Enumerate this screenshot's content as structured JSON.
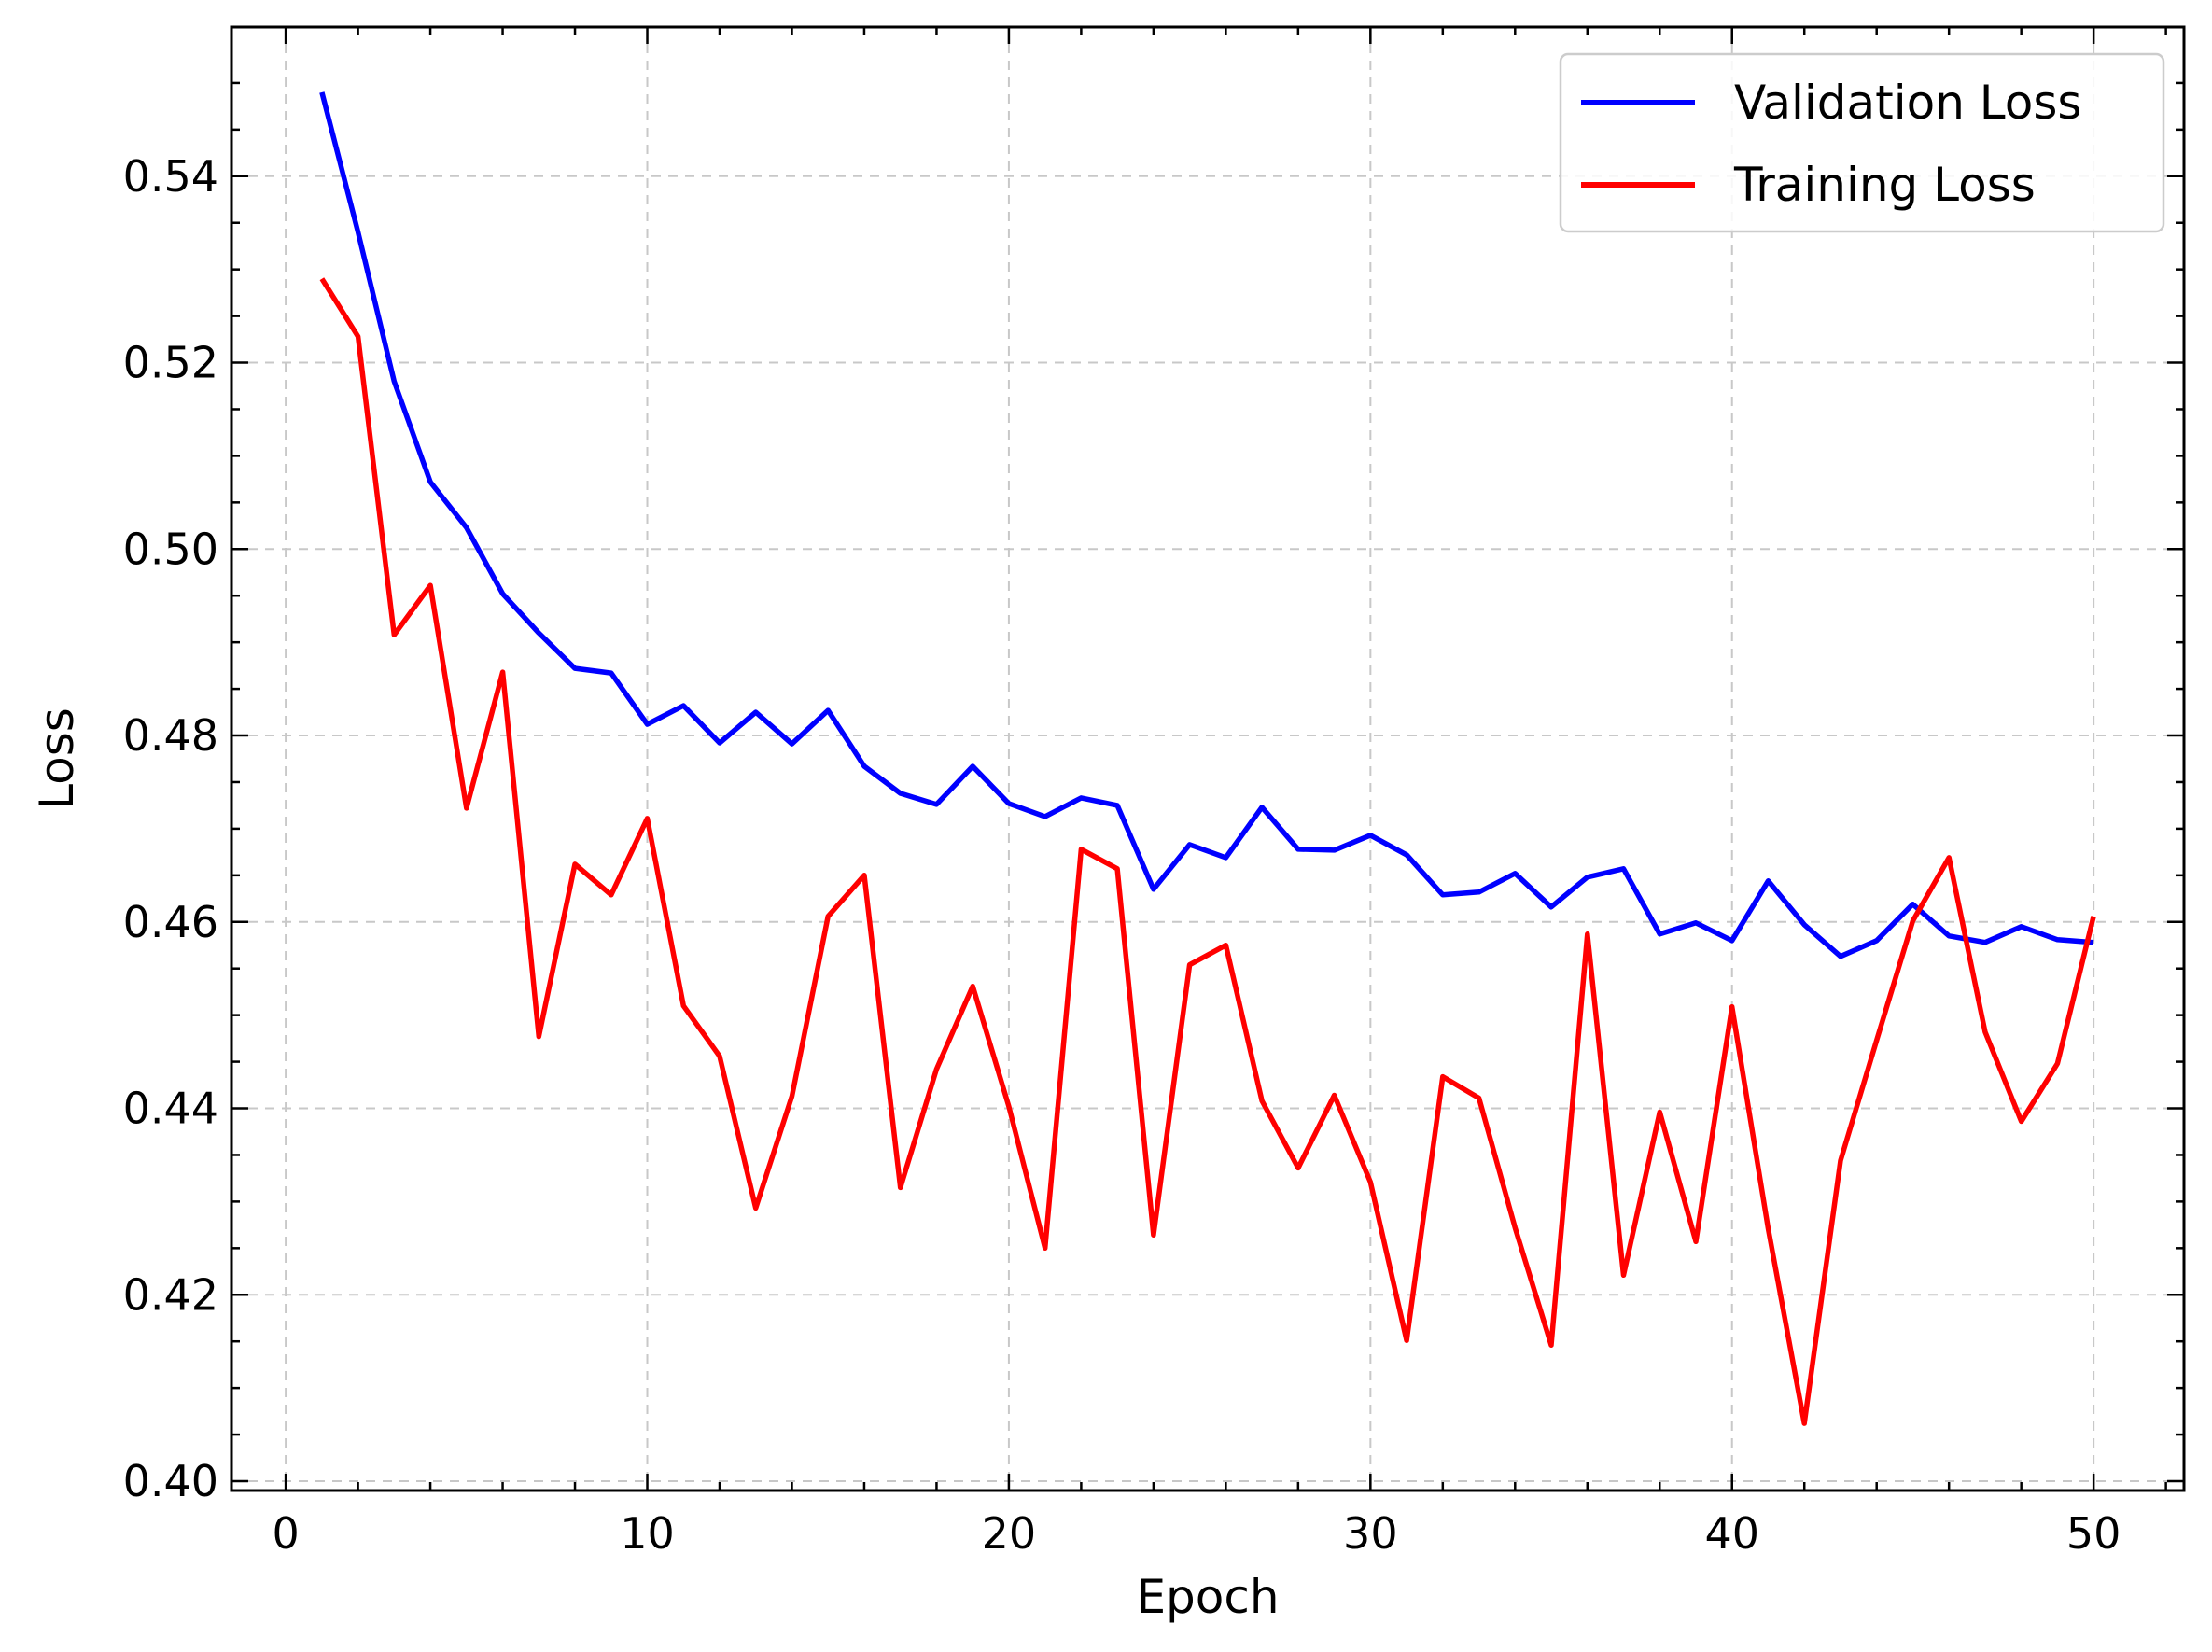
{
  "chart_data": {
    "type": "line",
    "title": "",
    "xlabel": "Epoch",
    "ylabel": "Loss",
    "xlim": [
      -1.5,
      52.5
    ],
    "ylim": [
      0.399,
      0.556
    ],
    "x_ticks": [
      0,
      10,
      20,
      30,
      40,
      50
    ],
    "x_tick_labels": [
      "0",
      "10",
      "20",
      "30",
      "40",
      "50"
    ],
    "y_ticks": [
      0.4,
      0.42,
      0.44,
      0.46,
      0.48,
      0.5,
      0.52,
      0.54
    ],
    "y_tick_labels": [
      "0.40",
      "0.42",
      "0.44",
      "0.46",
      "0.48",
      "0.50",
      "0.52",
      "0.54"
    ],
    "grid": true,
    "legend_position": "top-right",
    "x": [
      1,
      2,
      3,
      4,
      5,
      6,
      7,
      8,
      9,
      10,
      11,
      12,
      13,
      14,
      15,
      16,
      17,
      18,
      19,
      20,
      21,
      22,
      23,
      24,
      25,
      26,
      27,
      28,
      29,
      30,
      31,
      32,
      33,
      34,
      35,
      36,
      37,
      38,
      39,
      40,
      41,
      42,
      43,
      44,
      45,
      46,
      47,
      48,
      49,
      50
    ],
    "series": [
      {
        "name": "Validation Loss",
        "color": "#0000ff",
        "values": [
          0.549,
          0.534,
          0.518,
          0.5072,
          0.5023,
          0.4952,
          0.491,
          0.4872,
          0.4867,
          0.4812,
          0.4832,
          0.4792,
          0.4825,
          0.4791,
          0.4827,
          0.4767,
          0.4738,
          0.4726,
          0.4767,
          0.4727,
          0.4713,
          0.4733,
          0.4725,
          0.4635,
          0.4683,
          0.4669,
          0.4723,
          0.4678,
          0.4677,
          0.4693,
          0.4672,
          0.4629,
          0.4632,
          0.4652,
          0.4616,
          0.4648,
          0.4657,
          0.4587,
          0.4599,
          0.458,
          0.4644,
          0.4597,
          0.4563,
          0.458,
          0.4619,
          0.4585,
          0.4578,
          0.4595,
          0.4581,
          0.4578
        ]
      },
      {
        "name": "Training Loss",
        "color": "#ff0000",
        "values": [
          0.529,
          0.5228,
          0.4908,
          0.4961,
          0.4722,
          0.4868,
          0.4477,
          0.4662,
          0.4629,
          0.4711,
          0.451,
          0.4456,
          0.4293,
          0.4413,
          0.4606,
          0.465,
          0.4315,
          0.4442,
          0.4531,
          0.4402,
          0.425,
          0.4678,
          0.4657,
          0.4264,
          0.4554,
          0.4575,
          0.4408,
          0.4336,
          0.4414,
          0.4321,
          0.4151,
          0.4434,
          0.4411,
          0.4272,
          0.4146,
          0.4587,
          0.4221,
          0.4396,
          0.4257,
          0.4509,
          0.4271,
          0.4062,
          0.4344,
          0.4473,
          0.4601,
          0.4669,
          0.4482,
          0.4386,
          0.4448,
          0.4606
        ]
      }
    ]
  }
}
